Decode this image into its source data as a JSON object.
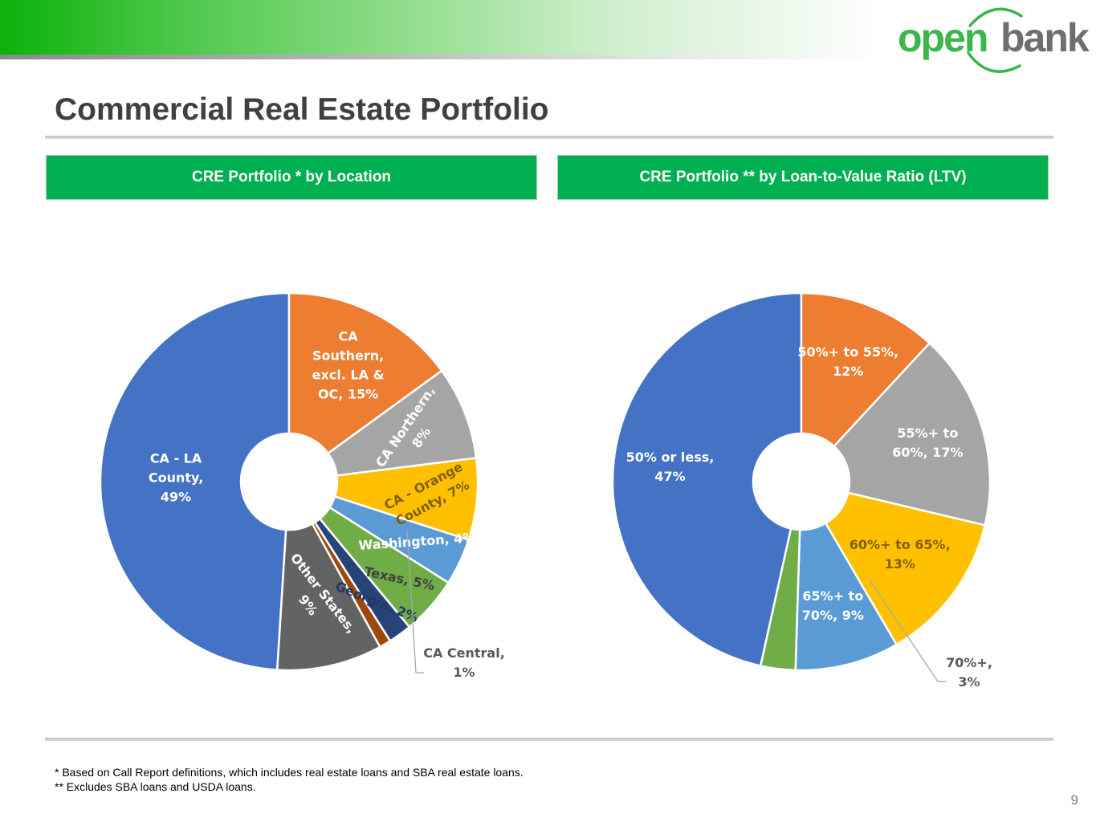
{
  "header": {
    "brand_left": "open",
    "brand_right": "bank",
    "title": "Commercial Real Estate Portfolio"
  },
  "panels": {
    "left_title": "CRE Portfolio * by Location",
    "right_title": "CRE Portfolio ** by Loan-to-Value Ratio (LTV)"
  },
  "chart_data": [
    {
      "type": "pie",
      "title": "CRE Portfolio * by Location",
      "donut": true,
      "categories": [
        "CA - LA County",
        "CA Southern, excl. LA & OC",
        "CA Northern",
        "CA - Orange County",
        "Washington",
        "Texas",
        "Georgia",
        "CA Central",
        "Other States"
      ],
      "values": [
        49,
        15,
        8,
        7,
        4,
        5,
        2,
        1,
        9
      ],
      "colors": [
        "#4472c4",
        "#ed7d31",
        "#a5a5a5",
        "#ffc000",
        "#5b9bd5",
        "#70ad47",
        "#264478",
        "#9e480e",
        "#636363"
      ],
      "data_labels": [
        [
          "CA - LA",
          "County,",
          "49%"
        ],
        [
          "CA",
          "Southern,",
          "excl. LA &",
          "OC, 15%"
        ],
        [
          "CA Northern,",
          "8%"
        ],
        [
          "CA - Orange",
          "County, 7%"
        ],
        [
          "Washington, 4%"
        ],
        [
          "Texas, 5%"
        ],
        [
          "Georgia, 2%"
        ],
        [
          "CA Central,",
          "1%"
        ],
        [
          "Other States,",
          "9%"
        ]
      ]
    },
    {
      "type": "pie",
      "title": "CRE Portfolio ** by Loan-to-Value Ratio (LTV)",
      "donut": true,
      "categories": [
        "50% or less",
        "50%+ to 55%",
        "55%+ to 60%",
        "60%+ to 65%",
        "65%+ to 70%",
        "70%+"
      ],
      "values": [
        47,
        12,
        17,
        13,
        9,
        3
      ],
      "colors": [
        "#4472c4",
        "#ed7d31",
        "#a5a5a5",
        "#ffc000",
        "#5b9bd5",
        "#70ad47"
      ],
      "data_labels": [
        [
          "50% or less,",
          "47%"
        ],
        [
          "50%+ to 55%,",
          "12%"
        ],
        [
          "55%+ to",
          "60%, 17%"
        ],
        [
          "60%+ to 65%,",
          "13%"
        ],
        [
          "65%+ to",
          "70%, 9%"
        ],
        [
          "70%+,",
          "3%"
        ]
      ]
    }
  ],
  "footnotes": {
    "line1": "* Based on Call Report definitions, which includes real estate loans and SBA real estate loans.",
    "line2": "** Excludes SBA loans and USDA loans."
  },
  "page_number": "9"
}
